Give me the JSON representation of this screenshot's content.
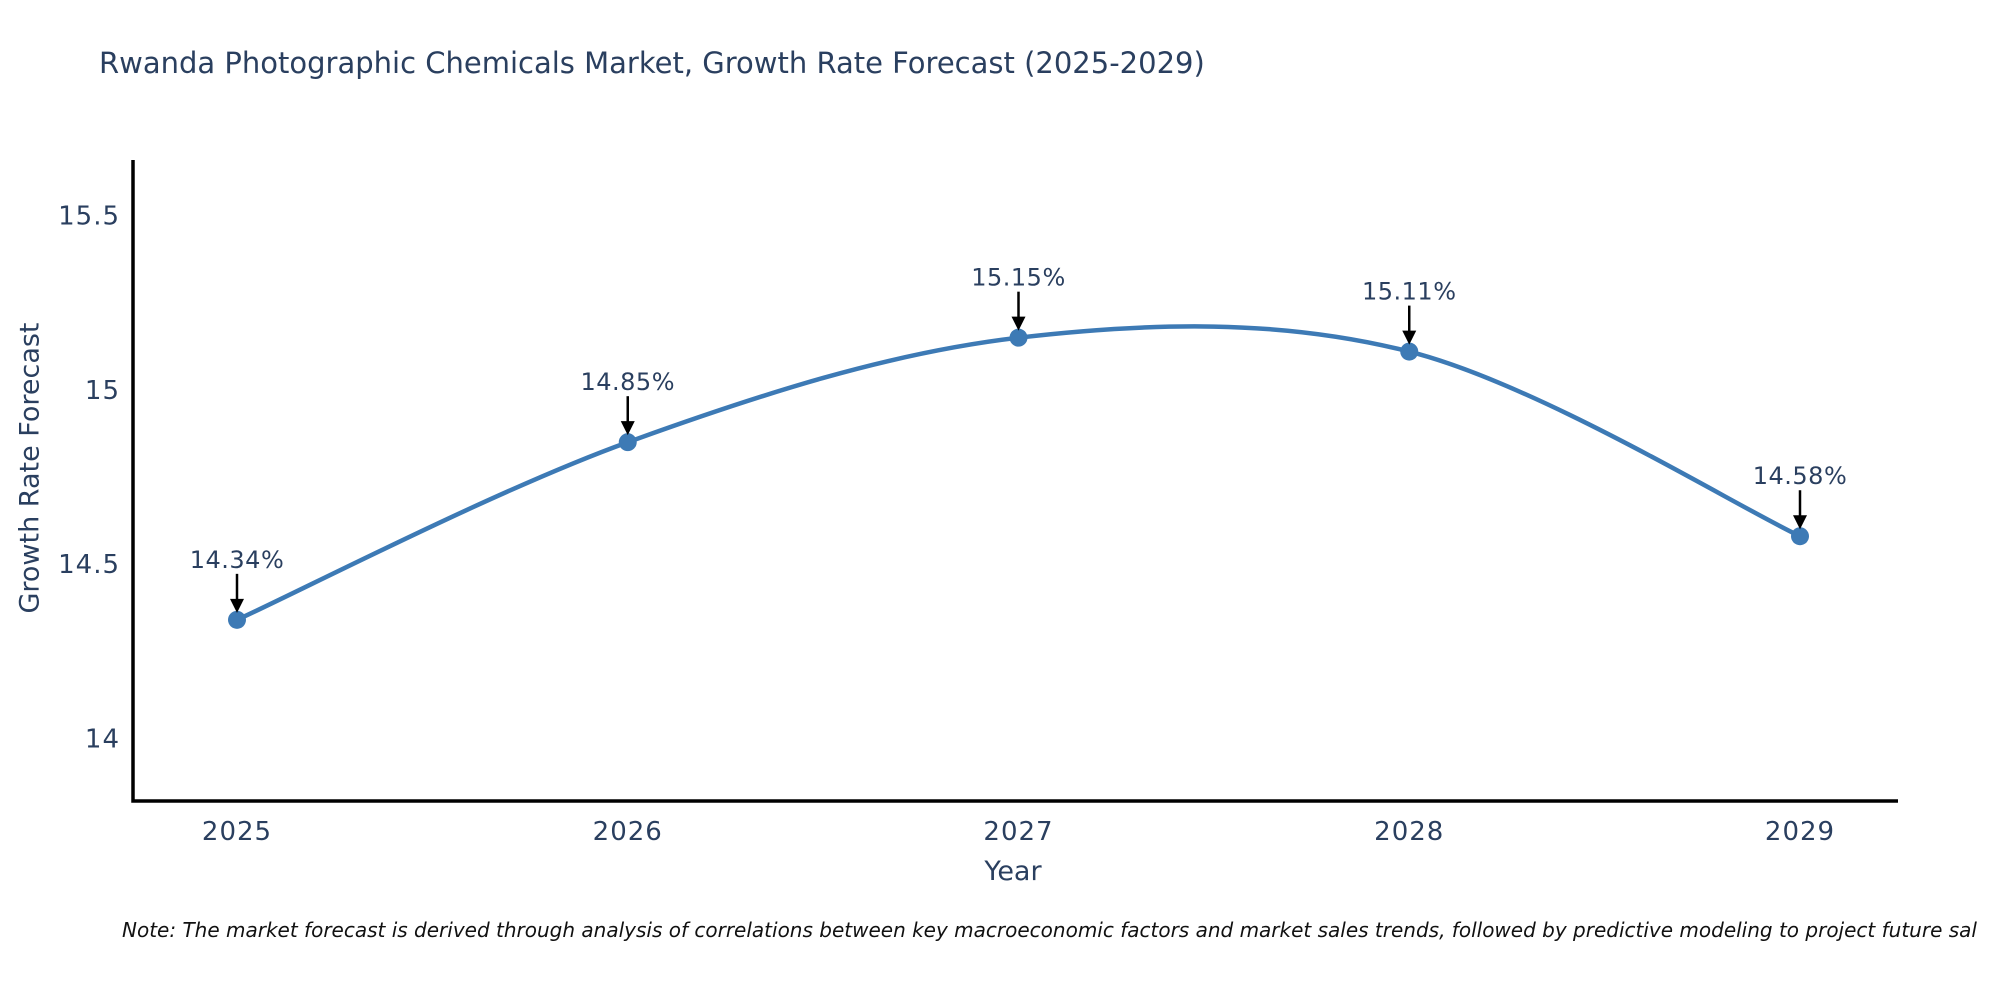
{
  "chart_data": {
    "type": "line",
    "title": "Rwanda Photographic Chemicals Market, Growth Rate Forecast (2025-2029)",
    "xlabel": "Year",
    "ylabel": "Growth Rate Forecast",
    "categories": [
      "2025",
      "2026",
      "2027",
      "2028",
      "2029"
    ],
    "series": [
      {
        "name": "Growth Rate Forecast",
        "values": [
          14.34,
          14.85,
          15.15,
          15.11,
          14.58
        ],
        "point_labels": [
          "14.34%",
          "14.85%",
          "15.15%",
          "15.11%",
          "14.58%"
        ]
      }
    ],
    "y_ticks": [
      {
        "value": 14,
        "label": "14"
      },
      {
        "value": 14.5,
        "label": "14.5"
      },
      {
        "value": 15,
        "label": "15"
      },
      {
        "value": 15.5,
        "label": "15.5"
      }
    ],
    "ylim": [
      13.82,
      15.66
    ],
    "grid": false,
    "legend_position": "none",
    "line_shape": "spline",
    "markers": true,
    "annotations_with_arrows": true,
    "colors": {
      "line": "#3d7ab5",
      "marker": "#3d7ab5",
      "axis": "#000000",
      "text": "#2a3f5f",
      "arrow": "#000000",
      "background": "#ffffff"
    }
  },
  "note": {
    "text": "Note: The market forecast is derived through analysis of correlations between key macroeconomic factors and market sales trends, followed by predictive modeling to project future sal"
  }
}
